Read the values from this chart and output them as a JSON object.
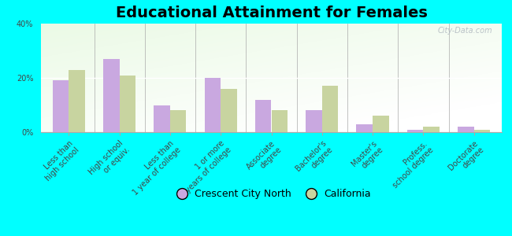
{
  "title": "Educational Attainment for Females",
  "categories": [
    "Less than\nhigh school",
    "High school\nor equiv.",
    "Less than\n1 year of college",
    "1 or more\nyears of college",
    "Associate\ndegree",
    "Bachelor's\ndegree",
    "Master's\ndegree",
    "Profess.\nschool degree",
    "Doctorate\ndegree"
  ],
  "crescent_values": [
    19,
    27,
    10,
    20,
    12,
    8,
    3,
    1,
    2
  ],
  "california_values": [
    23,
    21,
    8,
    16,
    8,
    17,
    6,
    2,
    1
  ],
  "crescent_color": "#c9a8e0",
  "california_color": "#c8d4a0",
  "bg_color": "#00ffff",
  "ylim": [
    0,
    40
  ],
  "yticks": [
    0,
    20,
    40
  ],
  "ytick_labels": [
    "0%",
    "20%",
    "40%"
  ],
  "legend_labels": [
    "Crescent City North",
    "California"
  ],
  "watermark": "City-Data.com",
  "title_fontsize": 14,
  "tick_fontsize": 7
}
